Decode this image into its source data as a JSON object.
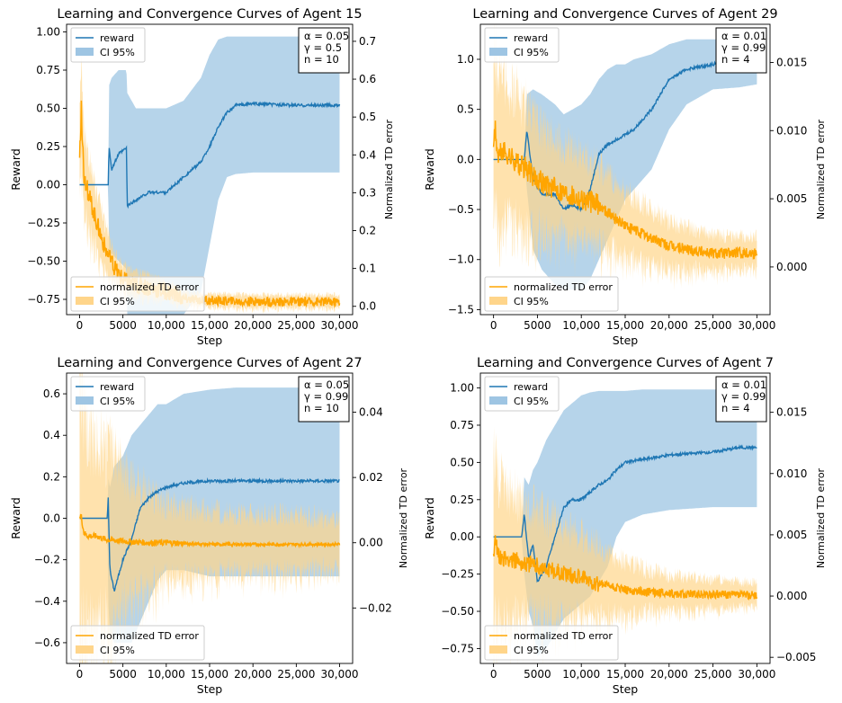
{
  "colors": {
    "reward": "#1f77b4",
    "reward_ci": "#9ec5e3",
    "td": "#ffa500",
    "td_ci": "#ffd58a"
  },
  "chart_data": [
    {
      "type": "line",
      "title": "Learning and Convergence Curves of Agent 15",
      "xlabel": "Step",
      "ylabel": "Reward",
      "y2label": "Normalized TD error",
      "xlim": [
        -1500,
        31500
      ],
      "ylim": [
        -0.85,
        1.05
      ],
      "y2lim": [
        -0.022,
        0.745
      ],
      "xticks": [
        0,
        5000,
        10000,
        15000,
        20000,
        25000,
        30000
      ],
      "xtick_labels": [
        "0",
        "5000",
        "10,000",
        "15,000",
        "20,000",
        "25,000",
        "30,000"
      ],
      "yticks": [
        -0.75,
        -0.5,
        -0.25,
        0.0,
        0.25,
        0.5,
        0.75,
        1.0
      ],
      "ytick_labels": [
        "−0.75",
        "−0.50",
        "−0.25",
        "0.00",
        "0.25",
        "0.50",
        "0.75",
        "1.00"
      ],
      "y2ticks": [
        0.0,
        0.1,
        0.2,
        0.3,
        0.4,
        0.5,
        0.6,
        0.7
      ],
      "y2tick_labels": [
        "0.0",
        "0.1",
        "0.2",
        "0.3",
        "0.4",
        "0.5",
        "0.6",
        "0.7"
      ],
      "legend_upper": [
        "reward",
        "CI 95%"
      ],
      "legend_lower": [
        "normalized TD error",
        "CI 95%"
      ],
      "params": [
        "α = 0.05",
        "γ = 0.5",
        "n = 10"
      ],
      "reward": {
        "x": [
          0,
          3300,
          3400,
          3700,
          4500,
          5400,
          5500,
          6500,
          8000,
          10000,
          12000,
          14000,
          15000,
          16000,
          17000,
          18000,
          20000,
          25000,
          30000
        ],
        "y": [
          0,
          0,
          0.25,
          0.1,
          0.2,
          0.24,
          -0.14,
          -0.1,
          -0.05,
          -0.05,
          0.05,
          0.15,
          0.25,
          0.38,
          0.47,
          0.52,
          0.53,
          0.52,
          0.52
        ],
        "ci_low": [
          0,
          0,
          -0.45,
          -0.45,
          -0.5,
          -0.55,
          -0.85,
          -0.85,
          -0.85,
          -0.85,
          -0.85,
          -0.7,
          -0.4,
          -0.1,
          0.05,
          0.07,
          0.08,
          0.08,
          0.08
        ],
        "ci_high": [
          0,
          0,
          0.65,
          0.7,
          0.75,
          0.75,
          0.6,
          0.5,
          0.5,
          0.5,
          0.55,
          0.7,
          0.85,
          0.95,
          0.97,
          0.97,
          0.97,
          0.97,
          0.97
        ]
      },
      "td": {
        "x": [
          0,
          200,
          500,
          1000,
          2000,
          3000,
          4000,
          5000,
          6000,
          8000,
          10000,
          12000,
          15000,
          20000,
          25000,
          30000
        ],
        "y": [
          0.4,
          0.52,
          0.35,
          0.3,
          0.22,
          0.15,
          0.1,
          0.07,
          0.06,
          0.05,
          0.04,
          0.02,
          0.015,
          0.012,
          0.012,
          0.012
        ],
        "ci_spread": [
          0.15,
          0.15,
          0.12,
          0.1,
          0.08,
          0.06,
          0.05,
          0.04,
          0.035,
          0.03,
          0.025,
          0.02,
          0.018,
          0.018,
          0.018,
          0.018
        ],
        "noise": 0.02
      }
    },
    {
      "type": "line",
      "title": "Learning and Convergence Curves of Agent 29",
      "xlabel": "Step",
      "ylabel": "Reward",
      "y2label": "Normalized TD error",
      "xlim": [
        -1500,
        31500
      ],
      "ylim": [
        -1.55,
        1.35
      ],
      "y2lim": [
        -0.0035,
        0.0178
      ],
      "xticks": [
        0,
        5000,
        10000,
        15000,
        20000,
        25000,
        30000
      ],
      "xtick_labels": [
        "0",
        "5000",
        "10,000",
        "15,000",
        "20,000",
        "25,000",
        "30,000"
      ],
      "yticks": [
        -1.5,
        -1.0,
        -0.5,
        0.0,
        0.5,
        1.0
      ],
      "ytick_labels": [
        "−1.5",
        "−1.0",
        "−0.5",
        "0.0",
        "0.5",
        "1.0"
      ],
      "y2ticks": [
        0.0,
        0.005,
        0.01,
        0.015
      ],
      "y2tick_labels": [
        "0.000",
        "0.005",
        "0.010",
        "0.015"
      ],
      "legend_upper": [
        "reward",
        "CI 95%"
      ],
      "legend_lower": [
        "normalized TD error",
        "CI 95%"
      ],
      "params": [
        "α = 0.01",
        "γ = 0.99",
        "n = 4"
      ],
      "reward": {
        "x": [
          0,
          3500,
          3800,
          4500,
          5500,
          7000,
          8000,
          9000,
          10000,
          11000,
          12000,
          13000,
          14000,
          15000,
          16000,
          18000,
          20000,
          22000,
          25000,
          28000,
          30000
        ],
        "y": [
          0,
          0,
          0.3,
          -0.2,
          -0.35,
          -0.35,
          -0.5,
          -0.45,
          -0.5,
          -0.3,
          0.05,
          0.15,
          0.2,
          0.25,
          0.3,
          0.5,
          0.8,
          0.9,
          0.95,
          1.05,
          1.05
        ],
        "ci_low": [
          0,
          0,
          -0.3,
          -0.9,
          -1.1,
          -1.25,
          -1.3,
          -1.3,
          -1.3,
          -1.2,
          -1.0,
          -0.8,
          -0.6,
          -0.4,
          -0.3,
          -0.1,
          0.3,
          0.55,
          0.7,
          0.72,
          0.75
        ],
        "ci_high": [
          0,
          0,
          0.65,
          0.7,
          0.65,
          0.55,
          0.45,
          0.5,
          0.55,
          0.65,
          0.8,
          0.9,
          0.95,
          0.95,
          1.0,
          1.05,
          1.15,
          1.2,
          1.2,
          1.2,
          1.2
        ]
      },
      "td": {
        "x": [
          0,
          200,
          500,
          1000,
          2000,
          3000,
          4000,
          5000,
          6000,
          8000,
          10000,
          12000,
          15000,
          20000,
          25000,
          30000
        ],
        "y": [
          0.009,
          0.01,
          0.008,
          0.0085,
          0.008,
          0.0075,
          0.007,
          0.0065,
          0.006,
          0.0055,
          0.005,
          0.0045,
          0.003,
          0.0015,
          0.001,
          0.001
        ],
        "ci_spread": [
          0.006,
          0.006,
          0.006,
          0.0055,
          0.005,
          0.005,
          0.0045,
          0.004,
          0.0038,
          0.0035,
          0.0033,
          0.003,
          0.0025,
          0.0018,
          0.0013,
          0.0012
        ],
        "noise": 0.0007
      }
    },
    {
      "type": "line",
      "title": "Learning and Convergence Curves of Agent 27",
      "xlabel": "Step",
      "ylabel": "Reward",
      "y2label": "Normalized TD error",
      "xlim": [
        -1500,
        31500
      ],
      "ylim": [
        -0.7,
        0.7
      ],
      "y2lim": [
        -0.037,
        0.052
      ],
      "xticks": [
        0,
        5000,
        10000,
        15000,
        20000,
        25000,
        30000
      ],
      "xtick_labels": [
        "0",
        "5000",
        "10,000",
        "15,000",
        "20,000",
        "25,000",
        "30,000"
      ],
      "yticks": [
        -0.6,
        -0.4,
        -0.2,
        0.0,
        0.2,
        0.4,
        0.6
      ],
      "ytick_labels": [
        "−0.6",
        "−0.4",
        "−0.2",
        "0.0",
        "0.2",
        "0.4",
        "0.6"
      ],
      "y2ticks": [
        -0.02,
        0.0,
        0.02,
        0.04
      ],
      "y2tick_labels": [
        "−0.02",
        "0.00",
        "0.02",
        "0.04"
      ],
      "legend_upper": [
        "reward",
        "CI 95%"
      ],
      "legend_lower": [
        "normalized TD error",
        "CI 95%"
      ],
      "params": [
        "α = 0.05",
        "γ = 0.99",
        "n = 10"
      ],
      "reward": {
        "x": [
          0,
          3200,
          3300,
          3500,
          4000,
          5000,
          5500,
          6000,
          7000,
          8000,
          9000,
          10000,
          12000,
          15000,
          18000,
          20000,
          25000,
          30000
        ],
        "y": [
          0,
          0,
          0.1,
          -0.25,
          -0.35,
          -0.2,
          -0.15,
          -0.1,
          0.05,
          0.1,
          0.13,
          0.15,
          0.17,
          0.18,
          0.18,
          0.18,
          0.18,
          0.18
        ],
        "ci_low": [
          0,
          0,
          -0.4,
          -0.55,
          -0.6,
          -0.6,
          -0.6,
          -0.6,
          -0.5,
          -0.4,
          -0.3,
          -0.25,
          -0.25,
          -0.28,
          -0.28,
          -0.28,
          -0.28,
          -0.28
        ],
        "ci_high": [
          0,
          0,
          0.2,
          0.15,
          0.25,
          0.3,
          0.35,
          0.4,
          0.45,
          0.5,
          0.55,
          0.55,
          0.6,
          0.62,
          0.63,
          0.63,
          0.63,
          0.63
        ]
      },
      "td": {
        "x": [
          0,
          200,
          500,
          1000,
          2000,
          3000,
          5000,
          8000,
          10000,
          15000,
          20000,
          25000,
          30000
        ],
        "y": [
          0.008,
          0.008,
          0.003,
          0.002,
          0.002,
          0.001,
          0.0005,
          0.0,
          0.0,
          -0.0005,
          -0.0005,
          -0.0005,
          -0.0005
        ],
        "ci_spread": [
          0.045,
          0.04,
          0.035,
          0.032,
          0.03,
          0.028,
          0.022,
          0.015,
          0.012,
          0.01,
          0.009,
          0.009,
          0.008
        ],
        "noise": 0.0008
      }
    },
    {
      "type": "line",
      "title": "Learning and Convergence Curves of Agent 7",
      "xlabel": "Step",
      "ylabel": "Reward",
      "y2label": "Normalized TD error",
      "xlim": [
        -1500,
        31500
      ],
      "ylim": [
        -0.85,
        1.1
      ],
      "y2lim": [
        -0.0055,
        0.0182
      ],
      "xticks": [
        0,
        5000,
        10000,
        15000,
        20000,
        25000,
        30000
      ],
      "xtick_labels": [
        "0",
        "5000",
        "10,000",
        "15,000",
        "20,000",
        "25,000",
        "30,000"
      ],
      "yticks": [
        -0.75,
        -0.5,
        -0.25,
        0.0,
        0.25,
        0.5,
        0.75,
        1.0
      ],
      "ytick_labels": [
        "−0.75",
        "−0.50",
        "−0.25",
        "0.00",
        "0.25",
        "0.50",
        "0.75",
        "1.00"
      ],
      "y2ticks": [
        -0.005,
        0.0,
        0.005,
        0.01,
        0.015
      ],
      "y2tick_labels": [
        "−0.005",
        "0.000",
        "0.005",
        "0.010",
        "0.015"
      ],
      "legend_upper": [
        "reward",
        "CI 95%"
      ],
      "legend_lower": [
        "normalized TD error",
        "CI 95%"
      ],
      "params": [
        "α = 0.01",
        "γ = 0.99",
        "n = 4"
      ],
      "reward": {
        "x": [
          0,
          3200,
          3500,
          4000,
          4500,
          5000,
          6000,
          7000,
          8000,
          9000,
          10000,
          11000,
          12000,
          13000,
          14000,
          15000,
          17000,
          20000,
          25000,
          28000,
          30000
        ],
        "y": [
          0,
          0,
          0.15,
          -0.15,
          -0.05,
          -0.3,
          -0.2,
          0.0,
          0.2,
          0.25,
          0.25,
          0.3,
          0.35,
          0.38,
          0.45,
          0.5,
          0.52,
          0.55,
          0.57,
          0.6,
          0.6
        ],
        "ci_low": [
          0,
          0,
          -0.25,
          -0.5,
          -0.6,
          -0.8,
          -0.75,
          -0.65,
          -0.55,
          -0.5,
          -0.45,
          -0.4,
          -0.3,
          -0.2,
          0.0,
          0.1,
          0.15,
          0.18,
          0.2,
          0.2,
          0.2
        ],
        "ci_high": [
          0,
          0,
          0.4,
          0.35,
          0.45,
          0.5,
          0.65,
          0.75,
          0.85,
          0.9,
          0.95,
          0.97,
          0.98,
          0.98,
          0.98,
          0.98,
          0.99,
          0.99,
          0.99,
          0.99,
          0.99
        ]
      },
      "td": {
        "x": [
          0,
          200,
          500,
          1000,
          2000,
          3000,
          5000,
          8000,
          10000,
          12000,
          15000,
          20000,
          25000,
          30000
        ],
        "y": [
          0.0035,
          0.0045,
          0.0035,
          0.003,
          0.003,
          0.0028,
          0.0025,
          0.0018,
          0.0015,
          0.001,
          0.0005,
          0.0002,
          0.0001,
          0.0001
        ],
        "ci_spread": [
          0.007,
          0.007,
          0.0065,
          0.006,
          0.0055,
          0.005,
          0.0045,
          0.004,
          0.0035,
          0.003,
          0.0022,
          0.0015,
          0.0012,
          0.001
        ],
        "noise": 0.0006
      }
    }
  ]
}
